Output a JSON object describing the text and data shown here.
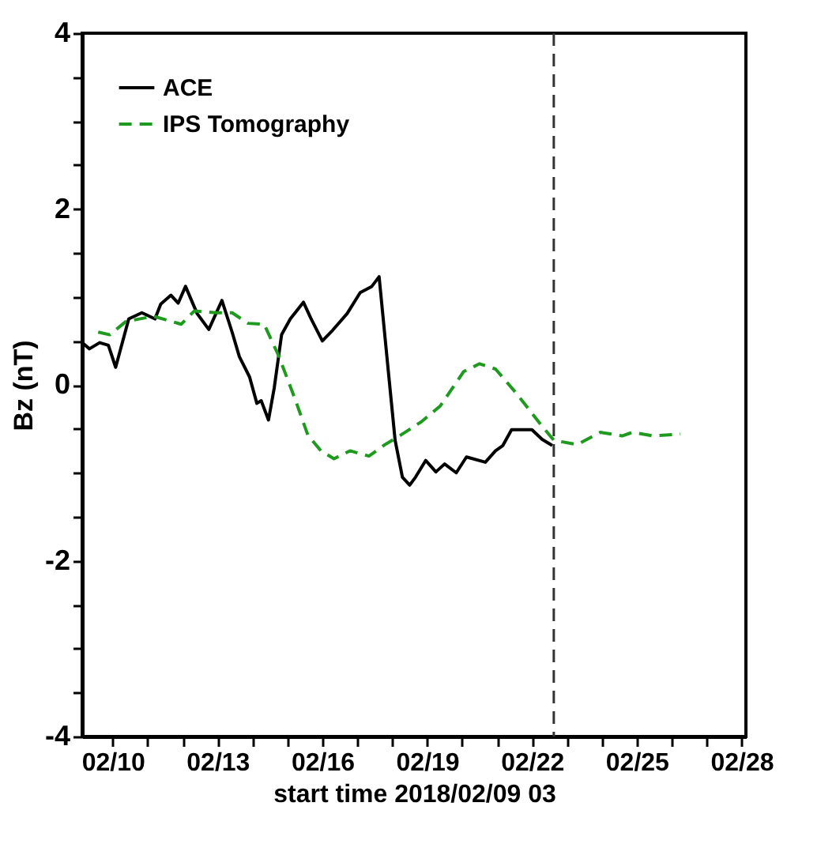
{
  "chart_data": {
    "type": "line",
    "xlabel": "start time 2018/02/09 03",
    "ylabel": "Bz (nT)",
    "xlim": [
      "2018-02-09T03:00",
      "2018-02-28T03:00"
    ],
    "ylim": [
      -4,
      4
    ],
    "xticks": [
      {
        "value": "2018-02-10",
        "label": "02/10"
      },
      {
        "value": "2018-02-11",
        "label": null
      },
      {
        "value": "2018-02-12",
        "label": null
      },
      {
        "value": "2018-02-13",
        "label": "02/13"
      },
      {
        "value": "2018-02-14",
        "label": null
      },
      {
        "value": "2018-02-15",
        "label": null
      },
      {
        "value": "2018-02-16",
        "label": "02/16"
      },
      {
        "value": "2018-02-17",
        "label": null
      },
      {
        "value": "2018-02-18",
        "label": null
      },
      {
        "value": "2018-02-19",
        "label": "02/19"
      },
      {
        "value": "2018-02-20",
        "label": null
      },
      {
        "value": "2018-02-21",
        "label": null
      },
      {
        "value": "2018-02-22",
        "label": "02/22"
      },
      {
        "value": "2018-02-23",
        "label": null
      },
      {
        "value": "2018-02-24",
        "label": null
      },
      {
        "value": "2018-02-25",
        "label": "02/25"
      },
      {
        "value": "2018-02-26",
        "label": null
      },
      {
        "value": "2018-02-27",
        "label": null
      },
      {
        "value": "2018-02-28",
        "label": "02/28"
      }
    ],
    "yticks": [
      -4,
      {
        "value": -3.5,
        "label": null
      },
      {
        "value": -3,
        "label": null
      },
      {
        "value": -2.5,
        "label": null
      },
      -2,
      {
        "value": -1.5,
        "label": null
      },
      {
        "value": -1,
        "label": null
      },
      {
        "value": -0.5,
        "label": null
      },
      0,
      {
        "value": 0.5,
        "label": null
      },
      {
        "value": 1,
        "label": null
      },
      {
        "value": 1.5,
        "label": null
      },
      2,
      {
        "value": 2.5,
        "label": null
      },
      {
        "value": 3,
        "label": null
      },
      {
        "value": 3.5,
        "label": null
      },
      4
    ],
    "grid": false,
    "legend": "top left",
    "marker": "none",
    "ref_lines": [
      {
        "axis": "x",
        "value": "2018-02-22T15:00",
        "color": "#333333",
        "line_style": "dashed"
      }
    ],
    "series": [
      {
        "name": "ACE",
        "color": "#000000",
        "line_style": "solid",
        "x": [
          "2018-02-09T03:00",
          "2018-02-09T08:00",
          "2018-02-09T15:00",
          "2018-02-09T21:00",
          "2018-02-10T02:00",
          "2018-02-10T11:00",
          "2018-02-10T20:00",
          "2018-02-11T05:00",
          "2018-02-11T09:00",
          "2018-02-11T16:00",
          "2018-02-11T21:00",
          "2018-02-12T02:00",
          "2018-02-12T10:00",
          "2018-02-12T18:00",
          "2018-02-13T03:00",
          "2018-02-13T10:00",
          "2018-02-13T15:00",
          "2018-02-13T22:00",
          "2018-02-14T03:00",
          "2018-02-14T06:00",
          "2018-02-14T11:00",
          "2018-02-14T15:00",
          "2018-02-14T20:00",
          "2018-02-15T02:00",
          "2018-02-15T11:00",
          "2018-02-15T16:00",
          "2018-02-16T00:00",
          "2018-02-16T07:00",
          "2018-02-16T17:00",
          "2018-02-17T02:00",
          "2018-02-17T10:00",
          "2018-02-17T15:00",
          "2018-02-17T21:00",
          "2018-02-18T02:00",
          "2018-02-18T07:00",
          "2018-02-18T12:00",
          "2018-02-18T16:00",
          "2018-02-18T23:00",
          "2018-02-19T06:00",
          "2018-02-19T12:00",
          "2018-02-19T20:00",
          "2018-02-20T03:00",
          "2018-02-20T16:00",
          "2018-02-20T23:00",
          "2018-02-21T04:00",
          "2018-02-21T10:00",
          "2018-02-22T00:00",
          "2018-02-22T07:00",
          "2018-02-22T14:00"
        ],
        "values": [
          0.48,
          0.41,
          0.48,
          0.45,
          0.2,
          0.75,
          0.82,
          0.75,
          0.92,
          1.02,
          0.93,
          1.12,
          0.81,
          0.63,
          0.96,
          0.6,
          0.32,
          0.09,
          -0.21,
          -0.18,
          -0.4,
          -0.03,
          0.57,
          0.75,
          0.94,
          0.76,
          0.5,
          0.62,
          0.81,
          1.05,
          1.12,
          1.23,
          0.21,
          -0.63,
          -1.05,
          -1.14,
          -1.05,
          -0.86,
          -0.99,
          -0.9,
          -1.0,
          -0.82,
          -0.88,
          -0.75,
          -0.69,
          -0.51,
          -0.51,
          -0.62,
          -0.69
        ]
      },
      {
        "name": "IPS Tomography",
        "color": "#1e9a1e",
        "line_style": "dashed",
        "x": [
          "2018-02-09T14:00",
          "2018-02-09T22:00",
          "2018-02-10T09:00",
          "2018-02-11T04:00",
          "2018-02-11T23:00",
          "2018-02-12T08:00",
          "2018-02-12T23:00",
          "2018-02-13T10:00",
          "2018-02-13T21:00",
          "2018-02-14T08:00",
          "2018-02-14T18:00",
          "2018-02-15T05:00",
          "2018-02-15T14:00",
          "2018-02-15T23:00",
          "2018-02-16T08:00",
          "2018-02-16T19:00",
          "2018-02-17T08:00",
          "2018-02-17T19:00",
          "2018-02-18T06:00",
          "2018-02-18T20:00",
          "2018-02-19T09:00",
          "2018-02-20T01:00",
          "2018-02-20T12:00",
          "2018-02-20T23:00",
          "2018-02-21T13:00",
          "2018-02-22T06:00",
          "2018-02-22T15:00",
          "2018-02-23T07:00",
          "2018-02-23T23:00",
          "2018-02-24T14:00",
          "2018-02-24T21:00",
          "2018-02-25T11:00",
          "2018-02-26T06:00"
        ],
        "values": [
          0.6,
          0.57,
          0.72,
          0.78,
          0.69,
          0.84,
          0.82,
          0.82,
          0.7,
          0.69,
          0.33,
          -0.15,
          -0.57,
          -0.75,
          -0.84,
          -0.75,
          -0.81,
          -0.68,
          -0.57,
          -0.42,
          -0.24,
          0.15,
          0.24,
          0.18,
          -0.09,
          -0.45,
          -0.63,
          -0.68,
          -0.54,
          -0.58,
          -0.54,
          -0.58,
          -0.56
        ]
      }
    ]
  }
}
